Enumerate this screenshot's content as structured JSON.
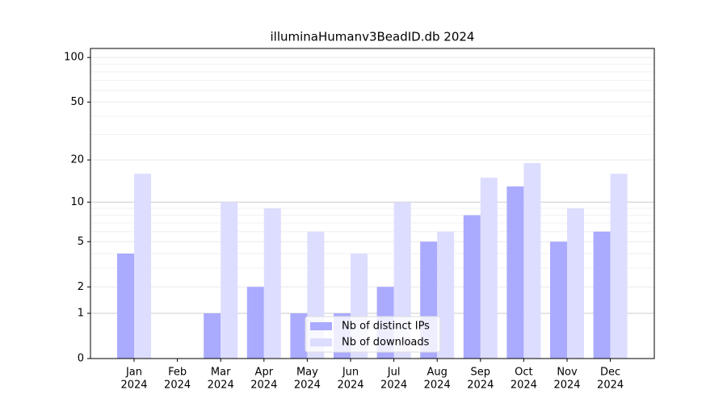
{
  "chart_data": {
    "type": "bar",
    "title": "illuminaHumanv3BeadID.db 2024",
    "categories": [
      [
        "Jan",
        "2024"
      ],
      [
        "Feb",
        "2024"
      ],
      [
        "Mar",
        "2024"
      ],
      [
        "Apr",
        "2024"
      ],
      [
        "May",
        "2024"
      ],
      [
        "Jun",
        "2024"
      ],
      [
        "Jul",
        "2024"
      ],
      [
        "Aug",
        "2024"
      ],
      [
        "Sep",
        "2024"
      ],
      [
        "Oct",
        "2024"
      ],
      [
        "Nov",
        "2024"
      ],
      [
        "Dec",
        "2024"
      ]
    ],
    "series": [
      {
        "name": "Nb of distinct IPs",
        "color": "#aaaaff",
        "values": [
          4,
          0,
          1,
          2,
          1,
          1,
          2,
          5,
          8,
          13,
          5,
          6
        ]
      },
      {
        "name": "Nb of downloads",
        "color": "#ddddff",
        "values": [
          16,
          0,
          10,
          9,
          6,
          4,
          10,
          6,
          15,
          19,
          9,
          16
        ]
      }
    ],
    "yscale": "log1p",
    "ylim": [
      0,
      115
    ],
    "yticks": [
      0,
      1,
      2,
      5,
      10,
      20,
      50,
      100
    ],
    "minor_grid": [
      3,
      4,
      6,
      7,
      8,
      9,
      30,
      40,
      60,
      70,
      80,
      90
    ],
    "grid": true,
    "legend": "lower center"
  }
}
